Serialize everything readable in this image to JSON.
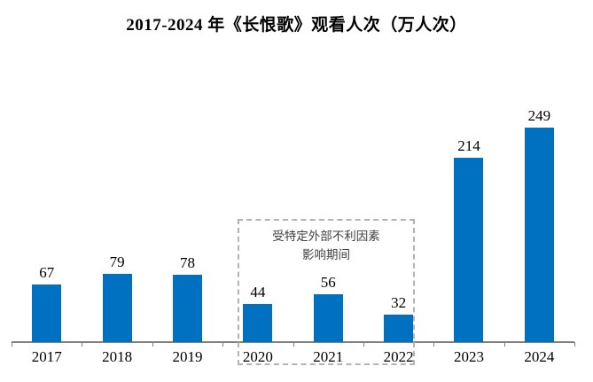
{
  "chart_data": {
    "type": "bar",
    "title": "2017-2024 年《长恨歌》观看人次（万人次）",
    "categories": [
      "2017",
      "2018",
      "2019",
      "2020",
      "2021",
      "2022",
      "2023",
      "2024"
    ],
    "values": [
      67,
      79,
      78,
      44,
      56,
      32,
      214,
      249
    ],
    "xlabel": "",
    "ylabel": "",
    "ylim": [
      0,
      260
    ],
    "grid": false,
    "legend": "none",
    "value_labels_shown": true,
    "annotation_lines": [
      "受特定外部不利因素",
      "影响期间"
    ],
    "annotation_span_categories": [
      "2020",
      "2021",
      "2022"
    ]
  },
  "colors": {
    "bar": "#0070c0",
    "axis": "#808080",
    "annotation_border": "#b3b3b3",
    "annotation_text": "#404040",
    "text": "#000000",
    "background": "#ffffff"
  }
}
